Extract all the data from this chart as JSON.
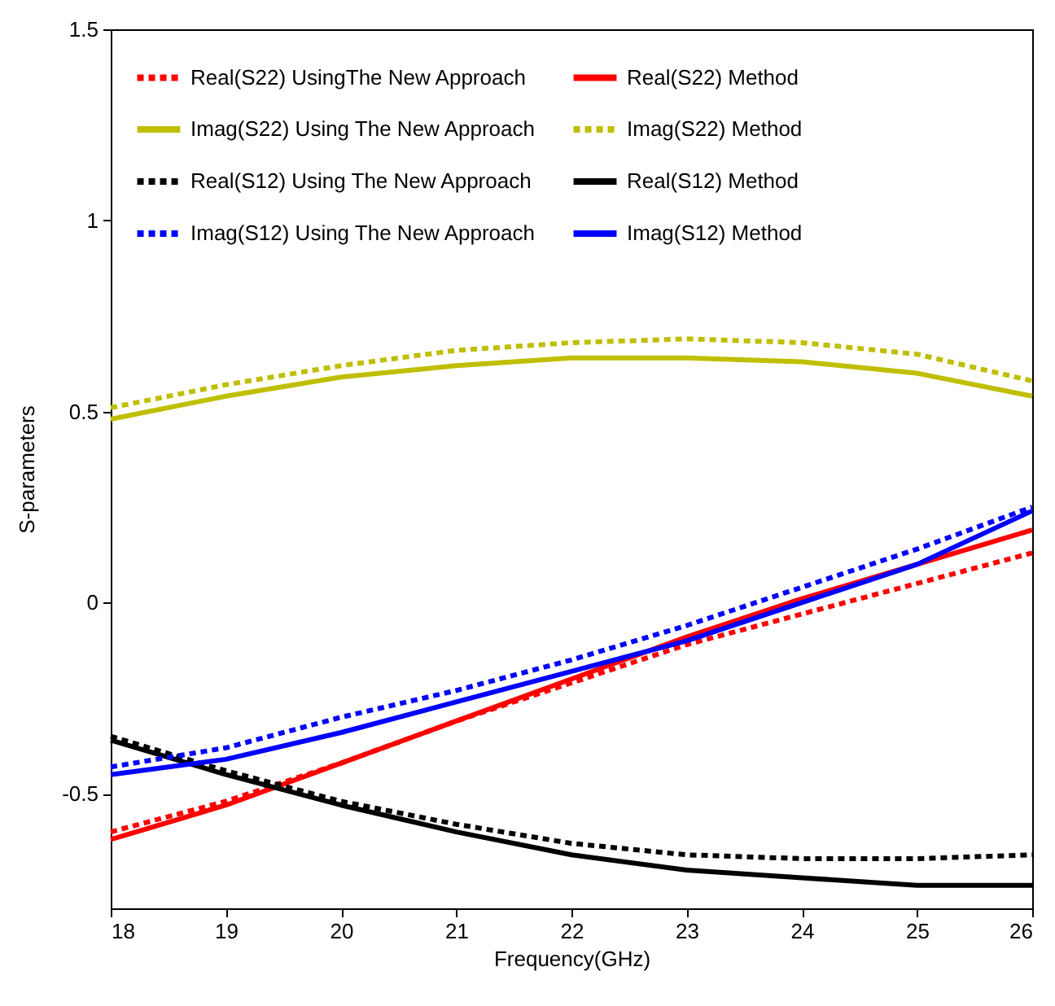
{
  "chart_data": {
    "type": "line",
    "xlabel": "Frequency(GHz)",
    "ylabel": "S-parameters",
    "x": [
      18,
      19,
      20,
      21,
      22,
      23,
      24,
      25,
      26
    ],
    "xlim": [
      18,
      26
    ],
    "xticks": [
      18,
      19,
      20,
      21,
      22,
      23,
      24,
      25,
      26
    ],
    "ylim": [
      -0.8,
      1.5
    ],
    "yticks": [
      -0.5,
      0,
      0.5,
      1,
      1.5
    ],
    "grid": false,
    "legend": "top left",
    "series": [
      {
        "name": "Real(S22) UsingThe New Approach",
        "color": "#ff0000",
        "line_style": "dotted",
        "values": [
          -0.6,
          -0.52,
          -0.42,
          -0.31,
          -0.21,
          -0.11,
          -0.03,
          0.05,
          0.13
        ]
      },
      {
        "name": "Real(S22) Method",
        "color": "#ff0000",
        "line_style": "solid",
        "values": [
          -0.62,
          -0.53,
          -0.42,
          -0.31,
          -0.2,
          -0.09,
          0.01,
          0.1,
          0.19
        ]
      },
      {
        "name": "Imag(S22) Using The New Approach",
        "color": "#bfbf00",
        "line_style": "solid",
        "values": [
          0.48,
          0.54,
          0.59,
          0.62,
          0.64,
          0.64,
          0.63,
          0.6,
          0.54
        ]
      },
      {
        "name": "Imag(S22) Method",
        "color": "#bfbf00",
        "line_style": "dotted",
        "values": [
          0.51,
          0.57,
          0.62,
          0.66,
          0.68,
          0.69,
          0.68,
          0.65,
          0.58
        ]
      },
      {
        "name": "Real(S12) Using The New Approach",
        "color": "#000000",
        "line_style": "dotted",
        "values": [
          -0.35,
          -0.44,
          -0.52,
          -0.58,
          -0.63,
          -0.66,
          -0.67,
          -0.67,
          -0.66
        ]
      },
      {
        "name": "Real(S12) Method",
        "color": "#000000",
        "line_style": "solid",
        "values": [
          -0.36,
          -0.45,
          -0.53,
          -0.6,
          -0.66,
          -0.7,
          -0.72,
          -0.74,
          -0.74
        ]
      },
      {
        "name": "Imag(S12) Using The New Approach",
        "color": "#0000ff",
        "line_style": "dotted",
        "values": [
          -0.43,
          -0.38,
          -0.3,
          -0.23,
          -0.15,
          -0.06,
          0.04,
          0.14,
          0.25
        ]
      },
      {
        "name": "Imag(S12) Method",
        "color": "#0000ff",
        "line_style": "solid",
        "values": [
          -0.45,
          -0.41,
          -0.34,
          -0.26,
          -0.18,
          -0.1,
          0.0,
          0.1,
          0.24
        ]
      }
    ]
  }
}
